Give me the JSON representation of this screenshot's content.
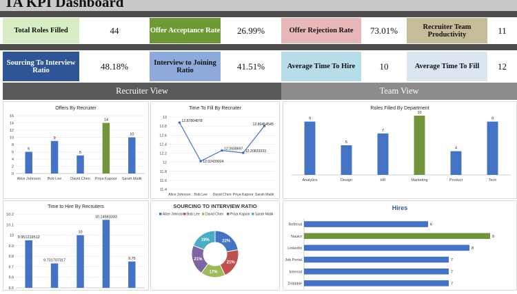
{
  "title": "TA KPI Dashboard",
  "kpis_row1": [
    {
      "label": "Total Roles Filled",
      "value": "44",
      "bg": "#d8edc4"
    },
    {
      "label": "Offer Acceptance Rate",
      "value": "26.99%",
      "bg": "#6e9a35"
    },
    {
      "label": "Offer Rejection Rate",
      "value": "73.01%",
      "bg": "#e8b7b9"
    },
    {
      "label": "Recruiter Team Productivity",
      "value": "11",
      "bg": "#c4bd97"
    }
  ],
  "kpis_row2": [
    {
      "label": "Sourcing To Interview Ratio",
      "value": "48.18%",
      "bg": "#2f5597"
    },
    {
      "label": "Interview to Joining Ratio",
      "value": "41.51%",
      "bg": "#8eaadb"
    },
    {
      "label": "Average Time To Hire",
      "value": "10",
      "bg": "#b7dee8"
    },
    {
      "label": "Average Time To Fill",
      "value": "12",
      "bg": "#dce6f1"
    }
  ],
  "sections": {
    "recruiter": "Recruiter View",
    "team": "Team View"
  },
  "colors": {
    "bar": "#4472c4",
    "highlight": "#70953a",
    "kpi_text_light": "#ffffff"
  },
  "chart_data": [
    {
      "id": "offers",
      "type": "bar",
      "title": "Offers By Recruiter",
      "categories": [
        "Alice Johnson",
        "Bob Lee",
        "David Chen",
        "Priya Kapoor",
        "Sarah Malik"
      ],
      "values": [
        6,
        9,
        5,
        14,
        10
      ],
      "highlight_index": 3,
      "ylim": [
        0,
        16
      ],
      "yticks": [
        "0",
        "2",
        "4",
        "6",
        "8",
        "10",
        "12",
        "14",
        "16"
      ]
    },
    {
      "id": "ttf",
      "type": "line",
      "title": "Time To Fill By Recruiter",
      "categories": [
        "Alice Johnson",
        "Bob Lee",
        "David Chen",
        "Priya Kapoor",
        "Sarah Malik"
      ],
      "values": [
        12.87804878,
        12.02439024,
        12.2608697,
        12.20833333,
        12.80454545
      ],
      "labels": [
        "12.87804878",
        "12.02439024",
        "12.2608697",
        "12.20833333",
        "12.80454545"
      ],
      "ylim": [
        11.4,
        13
      ],
      "yticks": [
        "11.4",
        "11.6",
        "11.8",
        "12",
        "12.2",
        "12.4",
        "12.6",
        "12.8",
        "13"
      ]
    },
    {
      "id": "dept",
      "type": "bar",
      "title": "Roles Filled By Department",
      "categories": [
        "Analytics",
        "Design",
        "HR",
        "Marketing",
        "Product",
        "Tech"
      ],
      "values": [
        9,
        5,
        7,
        10,
        4,
        9
      ],
      "highlight_index": 3,
      "ylim": [
        0,
        10
      ]
    },
    {
      "id": "tth",
      "type": "bar",
      "title": "Time to Hire By Recruiters",
      "values": [
        9.951219512,
        9.731707317,
        10,
        10.14583333,
        9.75
      ],
      "labels": [
        "9.951219512",
        "9.731707317",
        "10",
        "10.14583333",
        "9.75"
      ],
      "ylim": [
        9.5,
        10.2
      ],
      "yticks": [
        "9.5",
        "9.6",
        "9.7",
        "9.8",
        "9.9",
        "10",
        "10.1",
        "10.2"
      ]
    },
    {
      "id": "sourcing",
      "type": "pie",
      "title": "SOURCING TO INTERVIEW RATIO",
      "categories": [
        "Alice Johnson",
        "Bob Lee",
        "David Chen",
        "Priya Kapoor",
        "Sarah Malik"
      ],
      "values": [
        22,
        21,
        17,
        21,
        19
      ],
      "labels": [
        "22%",
        "21%",
        "17%",
        "21%",
        "19%"
      ],
      "colors": [
        "#4472c4",
        "#c0504d",
        "#9bbb59",
        "#8064a2",
        "#4bacc6"
      ]
    },
    {
      "id": "hires",
      "type": "bar",
      "orientation": "horizontal",
      "title": "Hires",
      "categories": [
        "Referral",
        "Naukri",
        "LinkedIn",
        "Job Portal",
        "Internal",
        "Dribbble"
      ],
      "values": [
        6,
        9,
        8,
        7,
        7,
        7
      ],
      "highlight_index": 1,
      "xlim": [
        0,
        10
      ]
    }
  ]
}
